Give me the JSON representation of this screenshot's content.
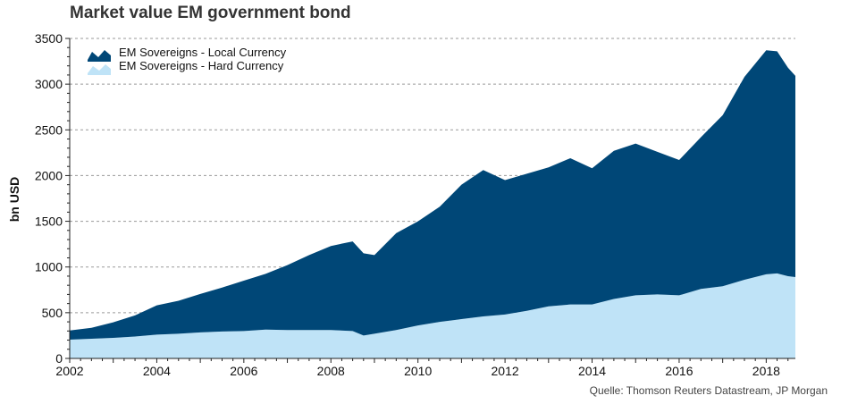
{
  "title": "Market value EM government bond",
  "source": "Quelle: Thomson Reuters Datastream, JP Morgan",
  "chart_data": {
    "type": "area",
    "stacked": true,
    "title": "Market value EM government bond",
    "ylabel": "bn USD",
    "xlabel": "",
    "xlim": [
      2002,
      2018.67
    ],
    "ylim": [
      0,
      3500
    ],
    "xticks": [
      "2002",
      "2004",
      "2006",
      "2008",
      "2010",
      "2012",
      "2014",
      "2016",
      "2018"
    ],
    "yticks": [
      "0",
      "500",
      "1000",
      "1500",
      "2000",
      "2500",
      "3000",
      "3500"
    ],
    "grid": true,
    "legend_position": "top-left",
    "x": [
      2002.0,
      2002.5,
      2003.0,
      2003.5,
      2004.0,
      2004.5,
      2005.0,
      2005.5,
      2006.0,
      2006.5,
      2007.0,
      2007.5,
      2008.0,
      2008.5,
      2008.75,
      2009.0,
      2009.5,
      2010.0,
      2010.5,
      2011.0,
      2011.5,
      2012.0,
      2012.5,
      2013.0,
      2013.5,
      2014.0,
      2014.5,
      2015.0,
      2015.5,
      2016.0,
      2016.5,
      2017.0,
      2017.5,
      2018.0,
      2018.25,
      2018.5,
      2018.67
    ],
    "series": [
      {
        "name": "EM Sovereigns - Hard Currency",
        "color": "#bfe3f7",
        "values": [
          205,
          215,
          225,
          240,
          260,
          270,
          285,
          295,
          300,
          315,
          310,
          310,
          310,
          300,
          250,
          270,
          310,
          360,
          400,
          430,
          460,
          480,
          520,
          570,
          590,
          590,
          650,
          690,
          700,
          690,
          760,
          790,
          860,
          920,
          930,
          900,
          890
        ]
      },
      {
        "name": "EM Sovereigns - Local Currency",
        "color": "#004777",
        "values": [
          100,
          120,
          170,
          230,
          320,
          360,
          420,
          480,
          550,
          610,
          710,
          820,
          920,
          980,
          900,
          860,
          1060,
          1140,
          1260,
          1470,
          1600,
          1470,
          1500,
          1520,
          1600,
          1490,
          1620,
          1660,
          1560,
          1480,
          1660,
          1870,
          2220,
          2450,
          2430,
          2280,
          2200
        ]
      }
    ]
  },
  "legend": [
    {
      "label": "EM Sovereigns - Local Currency",
      "icon": "area-swatch-dark"
    },
    {
      "label": "EM Sovereigns - Hard Currency",
      "icon": "area-swatch-light"
    }
  ]
}
